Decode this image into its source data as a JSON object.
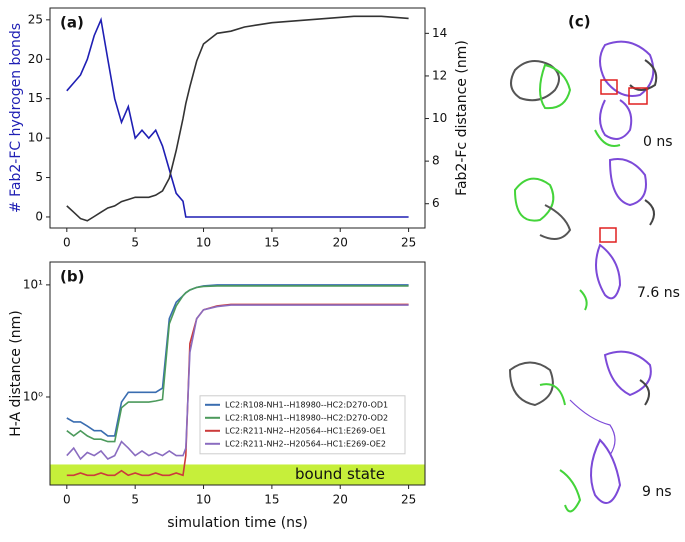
{
  "chart_data": [
    {
      "type": "line",
      "panel_label": "(a)",
      "y_label": "# Fab2-FC hydrogen bonds",
      "y2_label": "Fab2-Fc distance (nm)",
      "x": [
        0,
        0.5,
        1,
        1.5,
        2,
        2.5,
        3,
        3.5,
        4,
        4.5,
        5,
        5.5,
        6,
        6.5,
        7,
        7.5,
        8,
        8.5,
        8.7,
        9,
        9.5,
        10,
        11,
        12,
        13,
        14,
        15,
        17,
        19,
        21,
        23,
        25
      ],
      "xlim": [
        -1.23,
        26.2
      ],
      "xticks": [
        0,
        5,
        10,
        15,
        20,
        25
      ],
      "ylim": [
        -1.4,
        26.5
      ],
      "yticks": [
        0,
        5,
        10,
        15,
        20,
        25
      ],
      "y2lim": [
        4.86,
        15.19
      ],
      "y2ticks": [
        6,
        8,
        10,
        12,
        14
      ],
      "series": [
        {
          "color": "#1f1fb4",
          "values": [
            16,
            17,
            18,
            20,
            23,
            25,
            20,
            15,
            12,
            14,
            10,
            11,
            10,
            11,
            9,
            6,
            3,
            2,
            0,
            0,
            0,
            0,
            0,
            0,
            0,
            0,
            0,
            0,
            0,
            0,
            0,
            0
          ]
        },
        {
          "color": "#333333",
          "axis": "y2",
          "values": [
            5.9,
            5.6,
            5.3,
            5.2,
            5.4,
            5.6,
            5.8,
            5.9,
            6.1,
            6.2,
            6.3,
            6.3,
            6.3,
            6.4,
            6.6,
            7.2,
            8.5,
            10,
            10.7,
            11.5,
            12.7,
            13.5,
            14,
            14.1,
            14.3,
            14.4,
            14.5,
            14.6,
            14.7,
            14.8,
            14.8,
            14.7
          ]
        }
      ]
    },
    {
      "type": "line",
      "panel_label": "(b)",
      "x_label": "simulation time (ns)",
      "y_label": "H-A distance (nm)",
      "x": [
        0,
        0.5,
        1,
        1.5,
        2,
        2.5,
        3,
        3.5,
        4,
        4.5,
        5,
        5.5,
        6,
        6.5,
        7,
        7.5,
        8,
        8.5,
        8.7,
        9,
        9.5,
        10,
        11,
        12,
        13,
        14,
        15,
        17,
        19,
        21,
        23,
        25
      ],
      "xlim": [
        -1.23,
        26.2
      ],
      "xticks": [
        0,
        5,
        10,
        15,
        20,
        25
      ],
      "log_y": true,
      "ylim": [
        0.164,
        16
      ],
      "yticks": [
        {
          "value": 1,
          "label": "10⁰"
        },
        {
          "value": 10,
          "label": "10¹"
        }
      ],
      "shaded_region": {
        "label": "bound state",
        "y_max": 0.25,
        "color": "#c6ef3a"
      },
      "legend": "center right",
      "series": [
        {
          "name": "LC2:R108-NH1--H18980--HC2:D270-OD1",
          "color": "#3a6db0",
          "values": [
            0.65,
            0.6,
            0.6,
            0.55,
            0.5,
            0.5,
            0.45,
            0.45,
            0.9,
            1.1,
            1.1,
            1.1,
            1.1,
            1.1,
            1.2,
            5,
            7,
            8,
            8.5,
            9,
            9.5,
            9.8,
            10,
            10,
            10,
            10,
            10,
            10,
            10,
            10,
            10,
            10
          ]
        },
        {
          "name": "LC2:R108-NH1--H18980--HC2:D270-OD2",
          "color": "#4c9a5c",
          "values": [
            0.5,
            0.45,
            0.5,
            0.45,
            0.42,
            0.42,
            0.4,
            0.4,
            0.8,
            0.9,
            0.9,
            0.9,
            0.9,
            0.92,
            0.95,
            4.5,
            6.5,
            8,
            8.5,
            9,
            9.5,
            9.7,
            9.8,
            9.8,
            9.8,
            9.8,
            9.8,
            9.8,
            9.8,
            9.8,
            9.8,
            9.8
          ]
        },
        {
          "name": "LC2:R211-NH2--H20564--HC1:E269-OE1",
          "color": "#cc3b3b",
          "values": [
            0.2,
            0.2,
            0.21,
            0.2,
            0.2,
            0.21,
            0.2,
            0.2,
            0.22,
            0.2,
            0.21,
            0.2,
            0.2,
            0.21,
            0.2,
            0.2,
            0.21,
            0.2,
            0.3,
            3,
            5,
            6,
            6.5,
            6.7,
            6.7,
            6.7,
            6.7,
            6.7,
            6.7,
            6.7,
            6.7,
            6.7
          ]
        },
        {
          "name": "LC2:R211-NH2--H20564--HC1:E269-OE2",
          "color": "#8a6cc0",
          "values": [
            0.3,
            0.35,
            0.28,
            0.32,
            0.3,
            0.33,
            0.28,
            0.3,
            0.4,
            0.35,
            0.3,
            0.33,
            0.3,
            0.32,
            0.3,
            0.33,
            0.3,
            0.3,
            0.35,
            2.5,
            5,
            6,
            6.4,
            6.6,
            6.6,
            6.6,
            6.6,
            6.6,
            6.6,
            6.6,
            6.6,
            6.6
          ]
        }
      ]
    }
  ],
  "structures": {
    "panel_label": "(c)",
    "frames": [
      "0 ns",
      "7.6 ns",
      "9 ns"
    ]
  }
}
